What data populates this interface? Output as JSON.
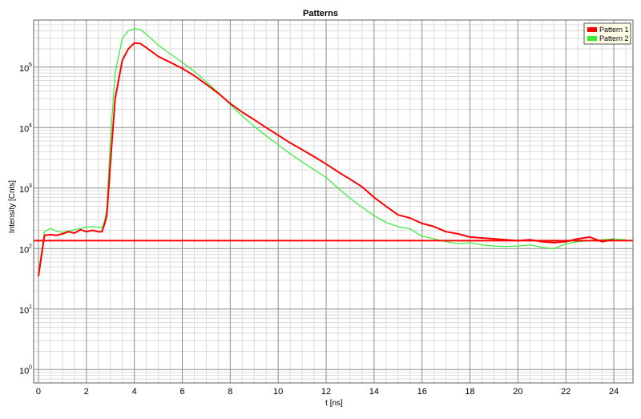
{
  "chart_data": {
    "type": "line",
    "title": "Patterns",
    "xlabel": "t [ns]",
    "ylabel": "Intensity [Cnts]",
    "xlim": [
      -0.2,
      24.8
    ],
    "ylim": [
      0.6,
      600000
    ],
    "yscale": "log",
    "grid": true,
    "legend_position": "top-right",
    "x_ticks": [
      {
        "value": 0,
        "label": "0"
      },
      {
        "value": 2,
        "label": "2"
      },
      {
        "value": 4,
        "label": "4"
      },
      {
        "value": 6,
        "label": "6"
      },
      {
        "value": 8,
        "label": "8"
      },
      {
        "value": 10,
        "label": "10"
      },
      {
        "value": 12,
        "label": "12"
      },
      {
        "value": 14,
        "label": "14"
      },
      {
        "value": 16,
        "label": "16"
      },
      {
        "value": 18,
        "label": "18"
      },
      {
        "value": 20,
        "label": "20"
      },
      {
        "value": 22,
        "label": "22"
      },
      {
        "value": 24,
        "label": "24"
      }
    ],
    "y_ticks": [
      {
        "value": 1,
        "base": "10",
        "exp": "0"
      },
      {
        "value": 10,
        "base": "10",
        "exp": "1"
      },
      {
        "value": 100,
        "base": "10",
        "exp": "2"
      },
      {
        "value": 1000,
        "base": "10",
        "exp": "3"
      },
      {
        "value": 10000,
        "base": "10",
        "exp": "4"
      },
      {
        "value": 100000,
        "base": "10",
        "exp": "5"
      }
    ],
    "hline": {
      "y": 135,
      "color": "#ff0000"
    },
    "series": [
      {
        "name": "Pattern 1",
        "color": "#ff0000",
        "points": [
          [
            0,
            35
          ],
          [
            0.25,
            165
          ],
          [
            0.5,
            170
          ],
          [
            0.75,
            165
          ],
          [
            1.0,
            175
          ],
          [
            1.25,
            190
          ],
          [
            1.5,
            180
          ],
          [
            1.75,
            205
          ],
          [
            2.0,
            190
          ],
          [
            2.25,
            200
          ],
          [
            2.5,
            190
          ],
          [
            2.65,
            190
          ],
          [
            2.75,
            250
          ],
          [
            2.85,
            350
          ],
          [
            3.0,
            2500
          ],
          [
            3.2,
            30000
          ],
          [
            3.5,
            130000
          ],
          [
            3.75,
            200000
          ],
          [
            4.0,
            250000
          ],
          [
            4.25,
            245000
          ],
          [
            4.5,
            210000
          ],
          [
            5.0,
            150000
          ],
          [
            5.5,
            120000
          ],
          [
            6.0,
            95000
          ],
          [
            6.5,
            72000
          ],
          [
            7.0,
            52000
          ],
          [
            7.5,
            37000
          ],
          [
            8.0,
            25000
          ],
          [
            8.5,
            18000
          ],
          [
            9.0,
            13500
          ],
          [
            9.5,
            10000
          ],
          [
            10.0,
            7500
          ],
          [
            10.5,
            5600
          ],
          [
            11.0,
            4300
          ],
          [
            11.5,
            3300
          ],
          [
            12.0,
            2500
          ],
          [
            12.5,
            1850
          ],
          [
            13.0,
            1400
          ],
          [
            13.5,
            1050
          ],
          [
            14.0,
            700
          ],
          [
            14.5,
            500
          ],
          [
            15.0,
            360
          ],
          [
            15.5,
            320
          ],
          [
            16.0,
            260
          ],
          [
            16.5,
            230
          ],
          [
            17.0,
            190
          ],
          [
            17.5,
            175
          ],
          [
            18.0,
            155
          ],
          [
            18.5,
            150
          ],
          [
            19.0,
            145
          ],
          [
            19.5,
            140
          ],
          [
            20.0,
            135
          ],
          [
            20.5,
            140
          ],
          [
            21.0,
            130
          ],
          [
            21.5,
            125
          ],
          [
            22.0,
            130
          ],
          [
            22.5,
            145
          ],
          [
            23.0,
            155
          ],
          [
            23.5,
            130
          ],
          [
            24.0,
            140
          ]
        ]
      },
      {
        "name": "Pattern 2",
        "color": "#33ee33",
        "points": [
          [
            0,
            40
          ],
          [
            0.25,
            190
          ],
          [
            0.5,
            215
          ],
          [
            0.75,
            195
          ],
          [
            1.0,
            185
          ],
          [
            1.5,
            205
          ],
          [
            2.0,
            225
          ],
          [
            2.25,
            230
          ],
          [
            2.5,
            225
          ],
          [
            2.65,
            220
          ],
          [
            2.75,
            280
          ],
          [
            2.85,
            450
          ],
          [
            3.0,
            6000
          ],
          [
            3.2,
            80000
          ],
          [
            3.5,
            300000
          ],
          [
            3.75,
            400000
          ],
          [
            4.0,
            430000
          ],
          [
            4.25,
            420000
          ],
          [
            4.5,
            350000
          ],
          [
            5.0,
            230000
          ],
          [
            5.5,
            165000
          ],
          [
            6.0,
            120000
          ],
          [
            6.5,
            85000
          ],
          [
            7.0,
            57000
          ],
          [
            7.5,
            38000
          ],
          [
            8.0,
            24000
          ],
          [
            8.5,
            15500
          ],
          [
            9.0,
            10500
          ],
          [
            9.5,
            7300
          ],
          [
            10.0,
            5200
          ],
          [
            10.5,
            3700
          ],
          [
            11.0,
            2700
          ],
          [
            11.5,
            2000
          ],
          [
            12.0,
            1500
          ],
          [
            12.5,
            1000
          ],
          [
            13.0,
            680
          ],
          [
            13.5,
            480
          ],
          [
            14.0,
            350
          ],
          [
            14.5,
            270
          ],
          [
            15.0,
            230
          ],
          [
            15.5,
            210
          ],
          [
            16.0,
            160
          ],
          [
            16.5,
            145
          ],
          [
            17.0,
            130
          ],
          [
            17.5,
            120
          ],
          [
            18.0,
            125
          ],
          [
            18.5,
            115
          ],
          [
            19.0,
            110
          ],
          [
            19.5,
            108
          ],
          [
            20.0,
            110
          ],
          [
            20.5,
            115
          ],
          [
            21.0,
            105
          ],
          [
            21.5,
            100
          ],
          [
            22.0,
            120
          ],
          [
            22.5,
            130
          ],
          [
            23.0,
            135
          ],
          [
            23.5,
            140
          ],
          [
            24.0,
            145
          ],
          [
            24.5,
            140
          ]
        ]
      }
    ]
  }
}
